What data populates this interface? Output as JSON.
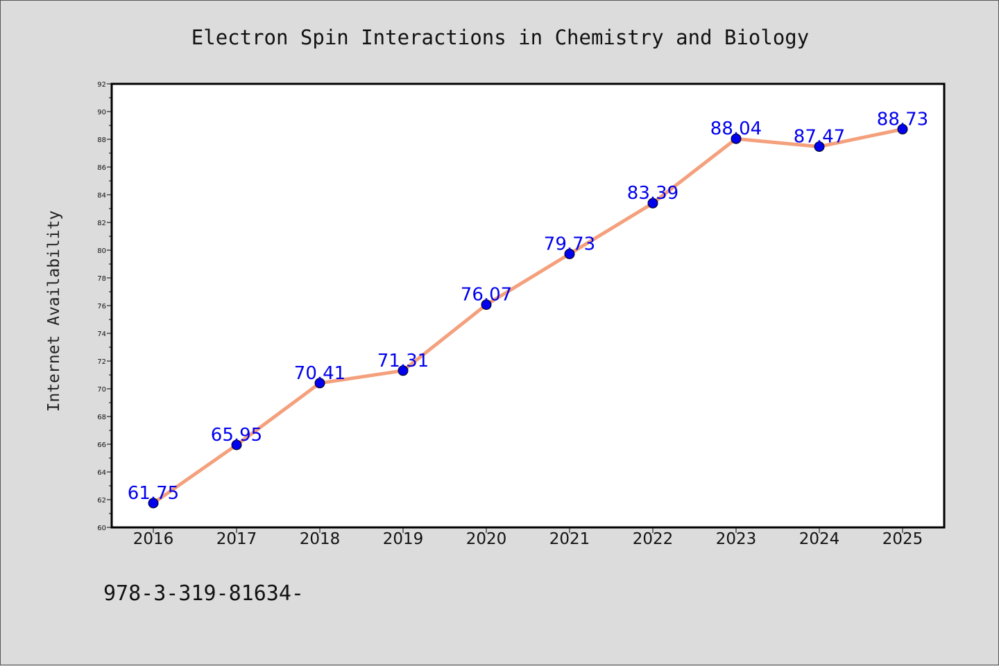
{
  "chart_data": {
    "type": "line",
    "title": "Electron Spin Interactions in Chemistry and Biology",
    "xlabel": "",
    "ylabel": "Internet Availability",
    "categories": [
      "2016",
      "2017",
      "2018",
      "2019",
      "2020",
      "2021",
      "2022",
      "2023",
      "2024",
      "2025"
    ],
    "series": [
      {
        "values": [
          61.75,
          65.95,
          70.41,
          71.31,
          76.07,
          79.73,
          83.39,
          88.04,
          87.47,
          88.73
        ],
        "data_labels": [
          "61.75",
          "65.95",
          "70.41",
          "71.31",
          "76.07",
          "79.73",
          "83.39",
          "88.04",
          "87.47",
          "88.73"
        ],
        "line_color": "#f4a07c",
        "marker_color": "#0000ee"
      }
    ],
    "ylim": [
      60,
      92
    ],
    "yticks": [
      "60",
      "62",
      "64",
      "66",
      "68",
      "70",
      "72",
      "74",
      "76",
      "78",
      "80",
      "82",
      "84",
      "86",
      "88",
      "90",
      "92"
    ],
    "grid": false,
    "legend": "none",
    "label_color": "#0000ee"
  },
  "footnote": "978-3-319-81634-"
}
